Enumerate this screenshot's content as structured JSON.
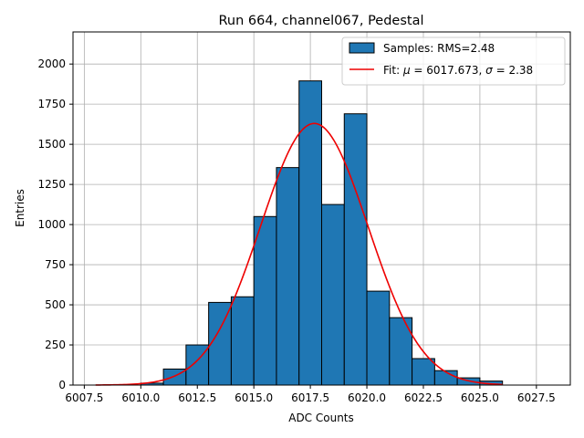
{
  "chart_data": {
    "type": "bar",
    "title": "Run 664, channel067, Pedestal",
    "xlabel": "ADC Counts",
    "ylabel": "Entries",
    "xlim": [
      6007.0,
      6029.0
    ],
    "ylim": [
      0,
      2200
    ],
    "grid": true,
    "legend_position": "upper-right",
    "x_ticks": [
      6007.5,
      6010.0,
      6012.5,
      6015.0,
      6017.5,
      6020.0,
      6022.5,
      6025.0,
      6027.5
    ],
    "x_tick_labels": [
      "6007.5",
      "6010.0",
      "6012.5",
      "6015.0",
      "6017.5",
      "6020.0",
      "6022.5",
      "6025.0",
      "6027.5"
    ],
    "y_ticks": [
      0,
      250,
      500,
      750,
      1000,
      1250,
      1500,
      1750,
      2000
    ],
    "y_tick_labels": [
      "0",
      "250",
      "500",
      "750",
      "1000",
      "1250",
      "1500",
      "1750",
      "2000"
    ],
    "bin_width": 1.0,
    "bins": [
      {
        "x0": 6010,
        "value": 12
      },
      {
        "x0": 6011,
        "value": 100
      },
      {
        "x0": 6012,
        "value": 250
      },
      {
        "x0": 6013,
        "value": 515
      },
      {
        "x0": 6014,
        "value": 550
      },
      {
        "x0": 6015,
        "value": 1050
      },
      {
        "x0": 6016,
        "value": 1355
      },
      {
        "x0": 6017,
        "value": 1895
      },
      {
        "x0": 6018,
        "value": 1125
      },
      {
        "x0": 6019,
        "value": 1690
      },
      {
        "x0": 6020,
        "value": 585
      },
      {
        "x0": 6021,
        "value": 420
      },
      {
        "x0": 6022,
        "value": 165
      },
      {
        "x0": 6023,
        "value": 90
      },
      {
        "x0": 6024,
        "value": 45
      },
      {
        "x0": 6025,
        "value": 25
      }
    ],
    "fit": {
      "mu": 6017.673,
      "sigma": 2.38,
      "amplitude": 1630,
      "x_range": [
        6008.0,
        6026.0
      ]
    },
    "series": [
      {
        "name": "Samples: RMS=2.48",
        "kind": "histogram",
        "color": "#1f77b4"
      },
      {
        "name_prefix": "Fit: ",
        "name_mu": "μ",
        "name_mid": " = 6017.673, ",
        "name_sigma": "σ",
        "name_suffix": " = 2.38",
        "kind": "line",
        "color": "#ee0000"
      }
    ]
  }
}
